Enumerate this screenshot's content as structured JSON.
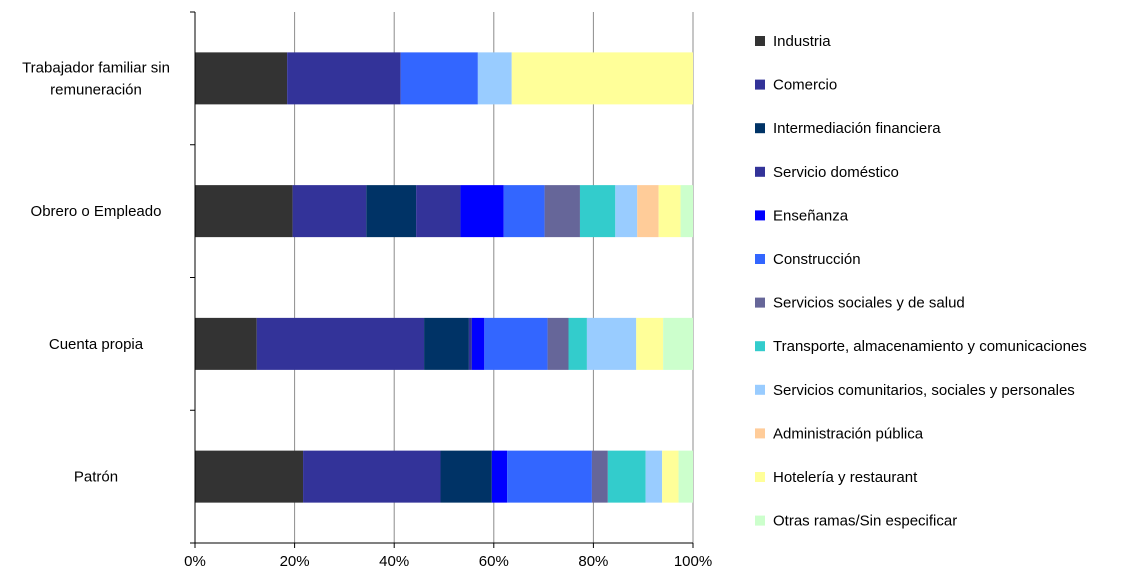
{
  "chart_data": {
    "type": "bar",
    "orientation": "horizontal",
    "stacked": "percent",
    "categories": [
      "Trabajador familiar sin remuneración",
      "Obrero o Empleado",
      "Cuenta propia",
      "Patrón"
    ],
    "category_lines": [
      [
        "Trabajador familiar sin",
        "remuneración"
      ],
      [
        "Obrero o Empleado"
      ],
      [
        "Cuenta propia"
      ],
      [
        "Patrón"
      ]
    ],
    "series": [
      {
        "name": "Industria",
        "color": "#333333",
        "values": [
          18.5,
          19.6,
          12.4,
          21.7
        ]
      },
      {
        "name": "Comercio",
        "color": "#333399",
        "values": [
          22.8,
          14.8,
          33.6,
          27.6
        ]
      },
      {
        "name": "Intermediación financiera",
        "color": "#003366",
        "values": [
          0,
          10.0,
          9.0,
          10.3
        ]
      },
      {
        "name": "Servicio doméstico",
        "color": "#333399",
        "values": [
          0,
          8.9,
          0.6,
          0
        ]
      },
      {
        "name": "Enseñanza",
        "color": "#0000FF",
        "values": [
          0,
          8.7,
          2.5,
          3.1
        ]
      },
      {
        "name": "Construcción",
        "color": "#3366FF",
        "values": [
          15.5,
          8.2,
          12.7,
          17.0
        ]
      },
      {
        "name": "Servicios sociales y de salud",
        "color": "#666699",
        "values": [
          0,
          7.1,
          4.2,
          3.2
        ]
      },
      {
        "name": "Transporte, almacenamiento y comunicaciones",
        "color": "#33CCCC",
        "values": [
          0,
          7.1,
          3.7,
          7.6
        ]
      },
      {
        "name": "Servicios comunitarios, sociales y personales",
        "color": "#99CCFF",
        "values": [
          6.8,
          4.4,
          9.9,
          3.3
        ]
      },
      {
        "name": "Administración pública",
        "color": "#FFCC99",
        "values": [
          0,
          4.3,
          0,
          0
        ]
      },
      {
        "name": "Hotelería y restaurant",
        "color": "#FFFF99",
        "values": [
          36.4,
          4.4,
          5.4,
          3.3
        ]
      },
      {
        "name": "Otras ramas/Sin especificar",
        "color": "#CCFFCC",
        "values": [
          0,
          2.5,
          6.0,
          2.9
        ]
      }
    ],
    "x_ticks": [
      "0%",
      "20%",
      "40%",
      "60%",
      "80%",
      "100%"
    ],
    "xlim": [
      0,
      100
    ],
    "grid": "vertical",
    "legend": "right"
  }
}
